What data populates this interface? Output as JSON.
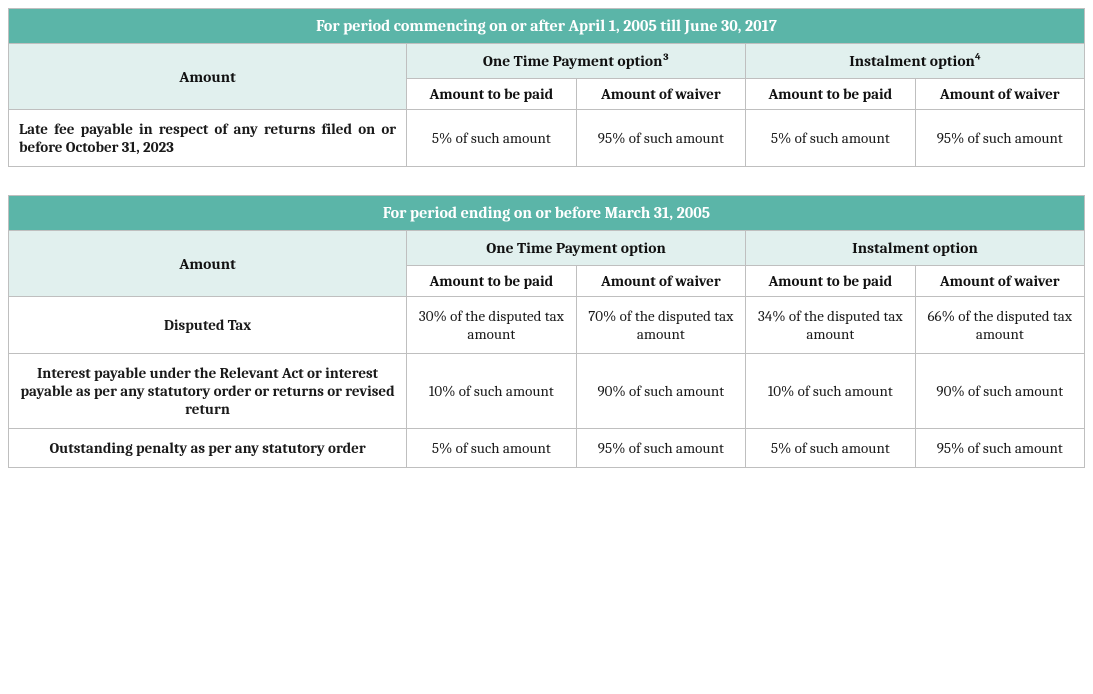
{
  "colors": {
    "title_bg": "#5bb5a8",
    "title_fg": "#ffffff",
    "sub_bg": "#e1f0ee",
    "border": "#bfbfbf"
  },
  "table1": {
    "title": "For period commencing on or after April 1, 2005 till June 30, 2017",
    "amount_header": "Amount",
    "option1": "One Time Payment option³",
    "option2": "Instalment option⁴",
    "col_paid": "Amount to be paid",
    "col_waiver": "Amount of waiver",
    "rows": [
      {
        "desc": "Late fee payable in respect of any returns filed on or before October 31, 2023",
        "o1_paid": "5% of such amount",
        "o1_waiver": "95% of such amount",
        "o2_paid": "5% of such amount",
        "o2_waiver": "95% of such amount"
      }
    ]
  },
  "table2": {
    "title": "For period ending on or before March 31, 2005",
    "amount_header": "Amount",
    "option1": "One Time Payment option",
    "option2": "Instalment option",
    "col_paid": "Amount to be paid",
    "col_waiver": "Amount of waiver",
    "rows": [
      {
        "desc": "Disputed Tax",
        "o1_paid": "30% of the disputed tax amount",
        "o1_waiver": "70% of the disputed tax amount",
        "o2_paid": "34% of the disputed tax amount",
        "o2_waiver": "66% of the disputed tax amount"
      },
      {
        "desc": "Interest payable under the Relevant Act or interest payable as per any statutory order or returns or revised return",
        "o1_paid": "10% of such amount",
        "o1_waiver": "90% of such amount",
        "o2_paid": "10% of such amount",
        "o2_waiver": "90% of such amount"
      },
      {
        "desc": "Outstanding penalty as per any statutory order",
        "o1_paid": "5% of such amount",
        "o1_waiver": "95% of such amount",
        "o2_paid": "5% of such amount",
        "o2_waiver": "95% of such amount"
      }
    ]
  }
}
